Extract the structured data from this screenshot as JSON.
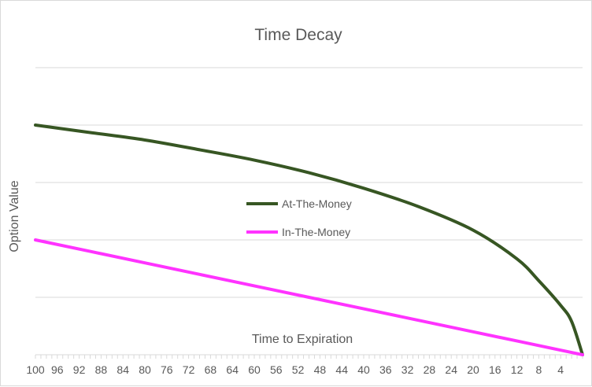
{
  "chart_data": {
    "type": "line",
    "title": "Time Decay",
    "xlabel": "Time to Expiration",
    "ylabel": "Option Value",
    "x_reversed": true,
    "xlim": [
      100,
      0
    ],
    "ylim": [
      0,
      4
    ],
    "y_tick_labels_shown": false,
    "grid": true,
    "legend_placement": "center",
    "x_tick_labels": [
      "100",
      "96",
      "92",
      "88",
      "84",
      "80",
      "76",
      "72",
      "68",
      "64",
      "60",
      "56",
      "52",
      "48",
      "44",
      "40",
      "36",
      "32",
      "28",
      "24",
      "20",
      "16",
      "12",
      "8",
      "4"
    ],
    "x": [
      100,
      90,
      80,
      70,
      60,
      50,
      40,
      30,
      20,
      12,
      8,
      4,
      2,
      0
    ],
    "series": [
      {
        "name": "At-The-Money",
        "color": "#375623",
        "values": [
          4.0,
          3.87,
          3.74,
          3.57,
          3.39,
          3.17,
          2.9,
          2.58,
          2.17,
          1.67,
          1.29,
          0.86,
          0.58,
          0.0
        ]
      },
      {
        "name": "In-The-Money",
        "color": "#ff33ff",
        "values": [
          2.0,
          1.8,
          1.6,
          1.4,
          1.2,
          1.0,
          0.8,
          0.6,
          0.4,
          0.24,
          0.16,
          0.08,
          0.04,
          0.0
        ]
      }
    ]
  }
}
